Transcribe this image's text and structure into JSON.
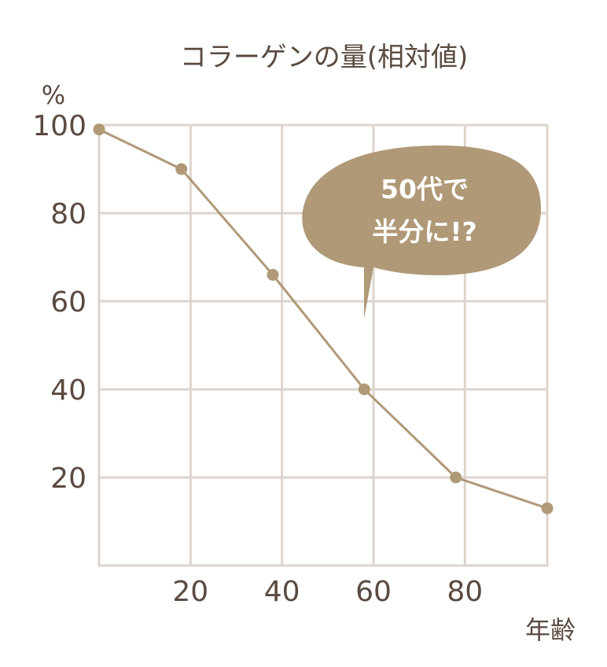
{
  "chart_data": {
    "type": "line",
    "title": "コラーゲンの量(相対値)",
    "ylabel": "%",
    "xlabel": "年齢",
    "xlim": [
      0,
      98
    ],
    "ylim": [
      0,
      100
    ],
    "x_ticks": [
      20,
      40,
      60,
      80
    ],
    "y_ticks": [
      100,
      80,
      60,
      40,
      20
    ],
    "grid": true,
    "series": [
      {
        "x": [
          0,
          18,
          38,
          58,
          78,
          98
        ],
        "y": [
          99,
          90,
          66,
          40,
          20,
          13
        ]
      }
    ],
    "annotation": {
      "line1": "50代で",
      "line2": "半分に!?"
    },
    "colors": {
      "line": "#b09977",
      "grid": "#ddd5cb",
      "text": "#5a4a3f",
      "bubble": "#b09977"
    }
  }
}
